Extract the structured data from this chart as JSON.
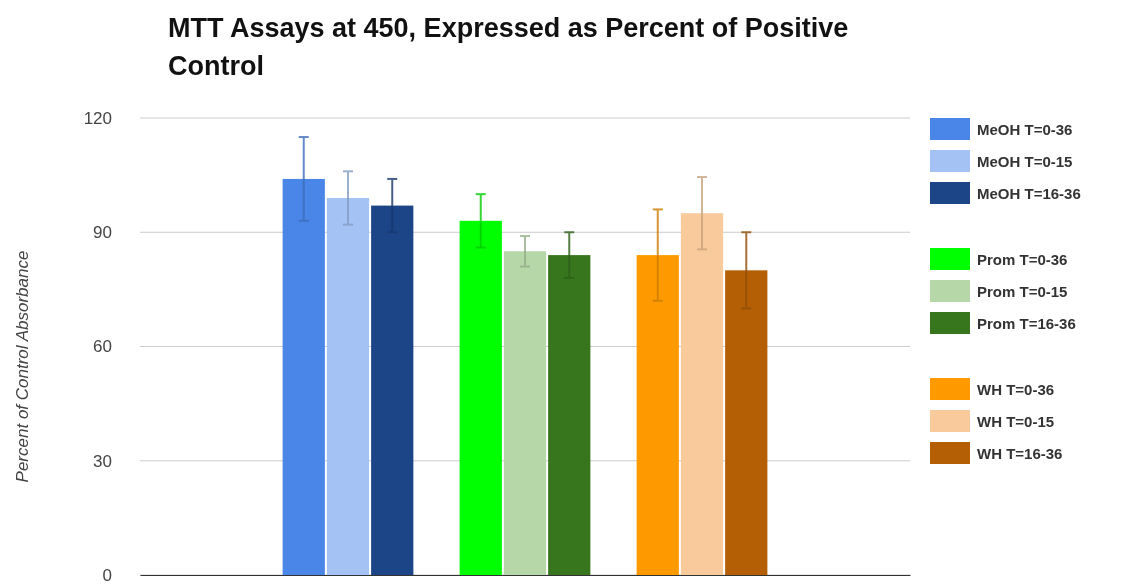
{
  "chart_data": {
    "type": "bar",
    "title": "MTT Assays at 450, Expressed as Percent of Positive Control",
    "ylabel": "Percent of Control Absorbance",
    "categories": [
      null,
      null,
      null
    ],
    "ylim": [
      0,
      120
    ],
    "yticks": [
      0,
      30,
      60,
      90,
      120
    ],
    "grid": "y",
    "legend": "right",
    "series": [
      {
        "name": "MeOH T=0-36",
        "color": "#4a86e8",
        "values": [
          104,
          null,
          null
        ],
        "errors": [
          11,
          null,
          null
        ]
      },
      {
        "name": "MeOH T=0-15",
        "color": "#a4c2f4",
        "values": [
          99,
          null,
          null
        ],
        "errors": [
          7,
          null,
          null
        ]
      },
      {
        "name": "MeOH T=16-36",
        "color": "#1c4587",
        "values": [
          97,
          null,
          null
        ],
        "errors": [
          7,
          null,
          null
        ]
      },
      {
        "name": "Prom T=0-36",
        "color": "#00ff00",
        "values": [
          null,
          93,
          null
        ],
        "errors": [
          null,
          7,
          null
        ]
      },
      {
        "name": "Prom T=0-15",
        "color": "#b6d7a8",
        "values": [
          null,
          85,
          null
        ],
        "errors": [
          null,
          4,
          null
        ]
      },
      {
        "name": "Prom T=16-36",
        "color": "#38761d",
        "values": [
          null,
          84,
          null
        ],
        "errors": [
          null,
          6,
          null
        ]
      },
      {
        "name": "WH T=0-36",
        "color": "#ff9900",
        "values": [
          null,
          null,
          84
        ],
        "errors": [
          null,
          null,
          12
        ]
      },
      {
        "name": "WH T=0-15",
        "color": "#f9cb9c",
        "values": [
          null,
          null,
          95
        ],
        "errors": [
          null,
          null,
          9.5
        ]
      },
      {
        "name": "WH T=16-36",
        "color": "#b45f06",
        "values": [
          null,
          null,
          80
        ],
        "errors": [
          null,
          null,
          10
        ]
      }
    ]
  }
}
